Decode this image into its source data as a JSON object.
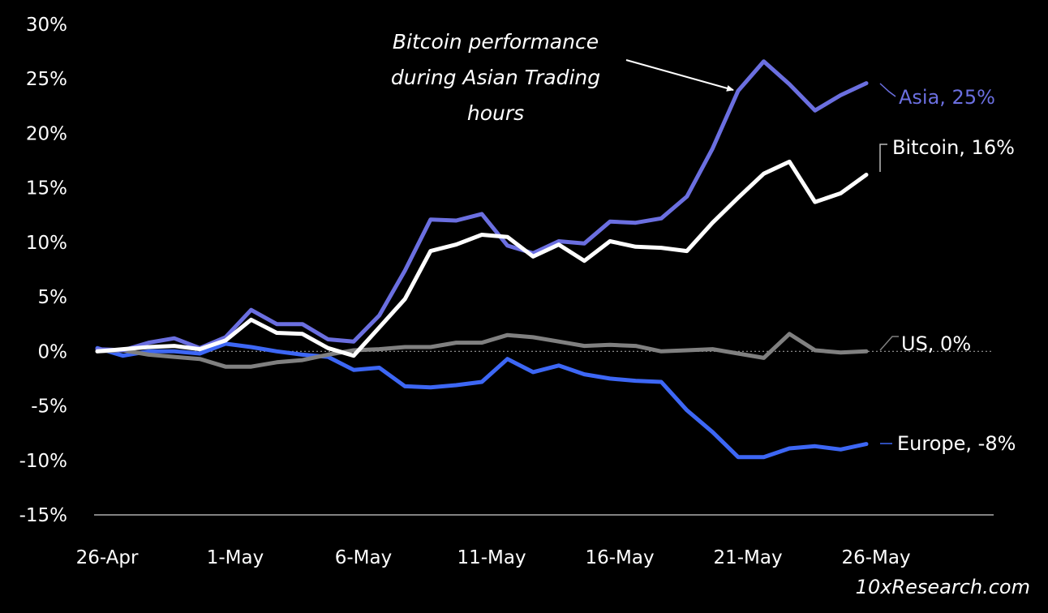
{
  "chart_data": {
    "type": "line",
    "title": "",
    "xlabel": "",
    "ylabel": "",
    "ylim": [
      -15,
      30
    ],
    "yticks": [
      30,
      25,
      20,
      15,
      10,
      5,
      0,
      -5,
      -10,
      -15
    ],
    "ytick_labels": [
      "30%",
      "25%",
      "20%",
      "15%",
      "10%",
      "5%",
      "0%",
      "-5%",
      "-10%",
      "-15%"
    ],
    "xtick_labels": [
      "26-Apr",
      "1-May",
      "6-May",
      "11-May",
      "16-May",
      "21-May",
      "26-May"
    ],
    "x": [
      "26-Apr",
      "27-Apr",
      "28-Apr",
      "29-Apr",
      "30-Apr",
      "1-May",
      "2-May",
      "3-May",
      "4-May",
      "5-May",
      "6-May",
      "7-May",
      "8-May",
      "9-May",
      "10-May",
      "11-May",
      "12-May",
      "13-May",
      "14-May",
      "15-May",
      "16-May",
      "17-May",
      "18-May",
      "19-May",
      "20-May",
      "21-May",
      "22-May",
      "23-May",
      "24-May",
      "25-May",
      "26-May"
    ],
    "series": [
      {
        "name": "Asia",
        "color": "#6b6fe0",
        "values": [
          0.2,
          0.1,
          0.8,
          1.2,
          0.3,
          1.3,
          3.8,
          2.5,
          2.5,
          1.1,
          0.9,
          3.3,
          7.4,
          12.1,
          12.0,
          12.6,
          9.7,
          9.0,
          10.1,
          9.9,
          11.9,
          11.8,
          12.2,
          14.2,
          18.6,
          23.9,
          26.6,
          24.5,
          22.1,
          23.5,
          24.6
        ]
      },
      {
        "name": "Bitcoin",
        "color": "#ffffff",
        "values": [
          0.0,
          0.2,
          0.4,
          0.5,
          0.2,
          1.0,
          2.9,
          1.7,
          1.6,
          0.3,
          -0.4,
          2.2,
          4.8,
          9.2,
          9.8,
          10.7,
          10.5,
          8.7,
          9.8,
          8.3,
          10.1,
          9.6,
          9.5,
          9.2,
          11.8,
          14.1,
          16.3,
          17.4,
          13.7,
          14.5,
          16.2
        ]
      },
      {
        "name": "US",
        "color": "#808080",
        "values": [
          0.0,
          0.1,
          -0.3,
          -0.5,
          -0.7,
          -1.4,
          -1.4,
          -1.0,
          -0.8,
          -0.3,
          0.1,
          0.2,
          0.4,
          0.4,
          0.8,
          0.8,
          1.5,
          1.3,
          0.9,
          0.5,
          0.6,
          0.5,
          0.0,
          0.1,
          0.2,
          -0.2,
          -0.6,
          1.6,
          0.1,
          -0.1,
          0.0
        ]
      },
      {
        "name": "Europe",
        "color": "#3d67f5",
        "values": [
          0.3,
          -0.4,
          0.0,
          0.0,
          -0.2,
          0.7,
          0.4,
          0.0,
          -0.3,
          -0.5,
          -1.7,
          -1.5,
          -3.2,
          -3.3,
          -3.1,
          -2.8,
          -0.7,
          -1.9,
          -1.3,
          -2.1,
          -2.5,
          -2.7,
          -2.8,
          -5.4,
          -7.4,
          -9.7,
          -9.7,
          -8.9,
          -8.7,
          -9.0,
          -8.5
        ]
      }
    ],
    "series_labels": [
      "Asia, 25%",
      "Bitcoin, 16%",
      "US, 0%",
      "Europe, -8%"
    ],
    "annotation": {
      "lines": [
        "Bitcoin performance",
        "during Asian Trading",
        "hours"
      ]
    },
    "grid": false,
    "legend": "inline-right"
  },
  "source": "10xResearch.com"
}
